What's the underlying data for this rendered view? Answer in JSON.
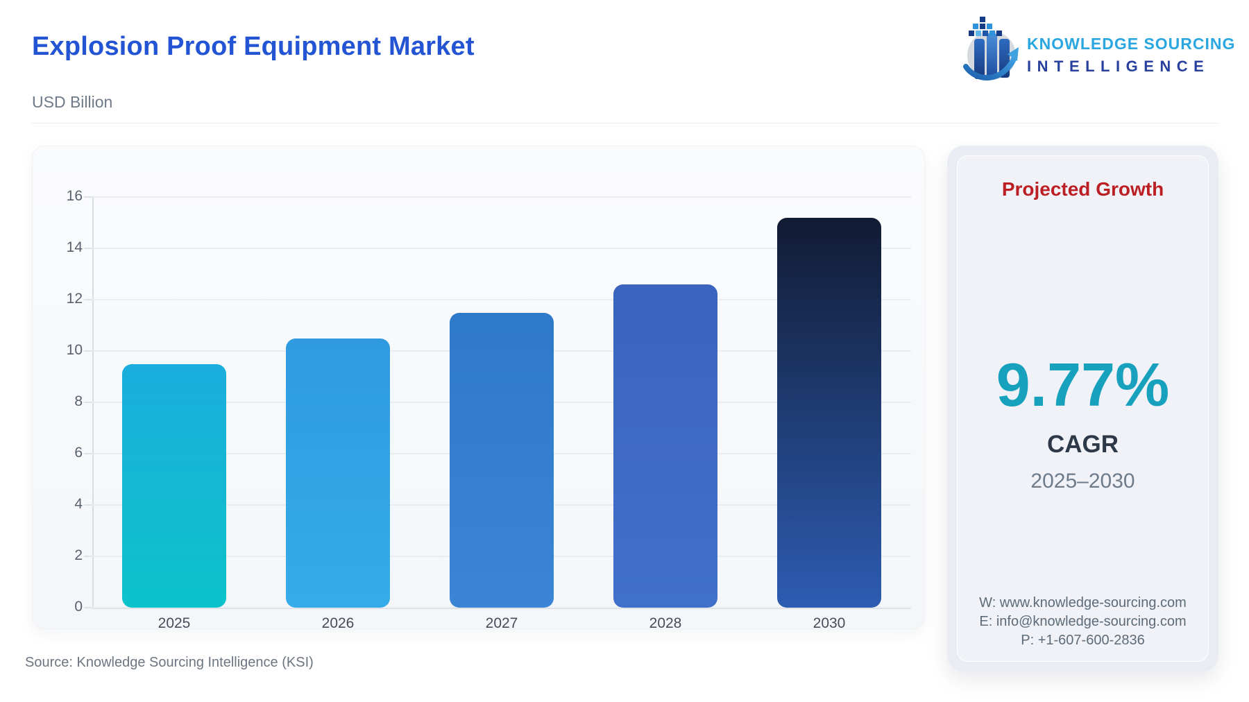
{
  "header": {
    "title": "Explosion Proof Equipment Market",
    "subtitle": "USD Billion",
    "title_color": "#2254d3",
    "logo": {
      "line1": "KNOWLEDGE SOURCING",
      "line2": "INTELLIGENCE",
      "line1_color": "#2aa6e0",
      "line2_color": "#28419e",
      "mark": "globe-bars-arrow-icon"
    }
  },
  "chart_data": {
    "type": "bar",
    "title": "Explosion Proof Equipment Market",
    "ylabel": "USD Billion",
    "categories": [
      "2025",
      "2026",
      "2027",
      "2028",
      "2030"
    ],
    "values": [
      9.5,
      10.5,
      11.5,
      12.6,
      15.2
    ],
    "ylim": [
      0,
      16
    ],
    "yticks": [
      0,
      2,
      4,
      6,
      8,
      10,
      12,
      14,
      16
    ],
    "grid": true,
    "legend": "none",
    "bar_colors": [
      [
        "#1baddd",
        "#0cc3ca"
      ],
      [
        "#2f9ae0",
        "#35ace8"
      ],
      [
        "#2e79c9",
        "#3a86d4"
      ],
      [
        "#3a64bd",
        "#4170ca"
      ],
      [
        "#111b33",
        "#2d5cb2"
      ]
    ]
  },
  "growth_panel": {
    "heading": "Projected Growth",
    "heading_color": "#bb1f24",
    "value": "9.77%",
    "value_color": "#18a1bd",
    "value_label": "CAGR",
    "period": "2025–2030",
    "contact": {
      "website": "W: www.knowledge-sourcing.com",
      "email": "E: info@knowledge-sourcing.com",
      "phone": "P: +1-607-600-2836"
    }
  },
  "footer": {
    "source": "Source: Knowledge Sourcing Intelligence (KSI)"
  }
}
